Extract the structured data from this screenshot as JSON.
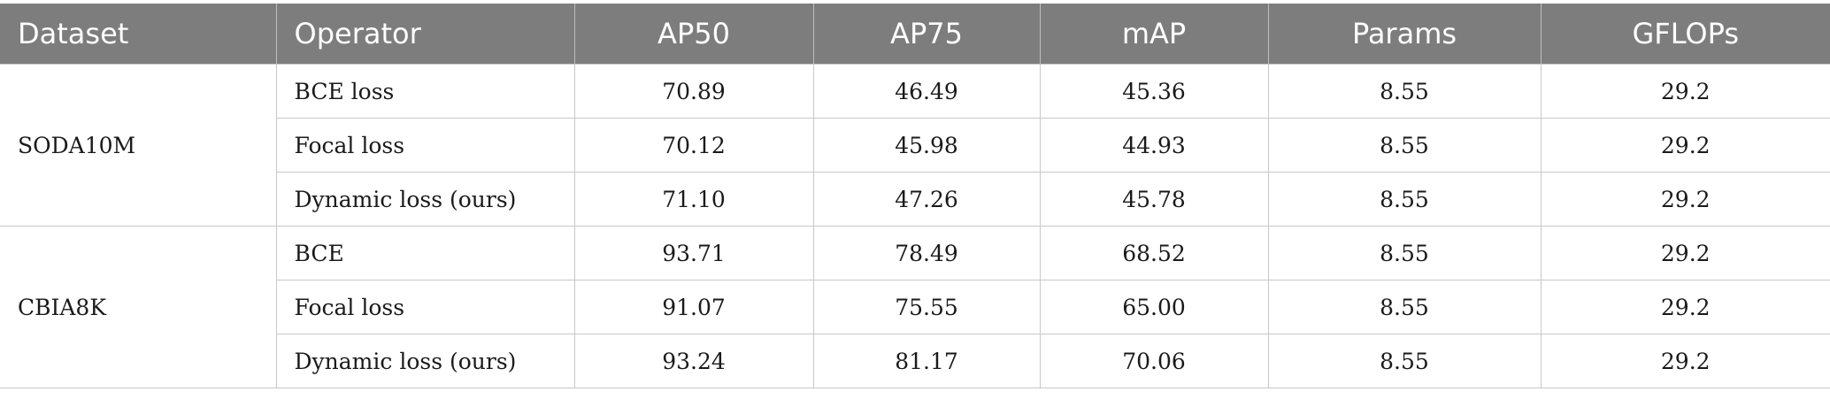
{
  "table": {
    "headers": [
      "Dataset",
      "Operator",
      "AP50",
      "AP75",
      "mAP",
      "Params",
      "GFLOPs"
    ],
    "groups": [
      {
        "dataset": "SODA10M",
        "rows": [
          {
            "operator": "BCE loss",
            "ap50": "70.89",
            "ap75": "46.49",
            "map": "45.36",
            "params": "8.55",
            "gflops": "29.2"
          },
          {
            "operator": "Focal loss",
            "ap50": "70.12",
            "ap75": "45.98",
            "map": "44.93",
            "params": "8.55",
            "gflops": "29.2"
          },
          {
            "operator": "Dynamic loss (ours)",
            "ap50": "71.10",
            "ap75": "47.26",
            "map": "45.78",
            "params": "8.55",
            "gflops": "29.2"
          }
        ]
      },
      {
        "dataset": "CBIA8K",
        "rows": [
          {
            "operator": "BCE",
            "ap50": "93.71",
            "ap75": "78.49",
            "map": "68.52",
            "params": "8.55",
            "gflops": "29.2"
          },
          {
            "operator": "Focal loss",
            "ap50": "91.07",
            "ap75": "75.55",
            "map": "65.00",
            "params": "8.55",
            "gflops": "29.2"
          },
          {
            "operator": "Dynamic loss (ours)",
            "ap50": "93.24",
            "ap75": "81.17",
            "map": "70.06",
            "params": "8.55",
            "gflops": "29.2"
          }
        ]
      }
    ]
  }
}
